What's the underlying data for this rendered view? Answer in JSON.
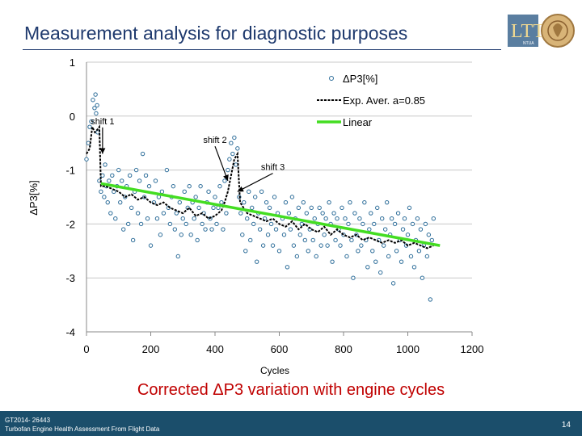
{
  "slide": {
    "title": "Measurement analysis for diagnostic purposes",
    "caption": "Corrected ΔP3 variation with engine cycles",
    "footer_line1": "GT2014- 26443",
    "footer_line2": "Turbofan Engine Health Assessment From Flight Data",
    "page_number": "14",
    "logo_text": "NTUA"
  },
  "colors": {
    "title": "#1f3a6e",
    "marker": "#2e6e9a",
    "average": "#000000",
    "linear": "#44dd22",
    "caption": "#c00000",
    "footer_bg": "#1b4e6b"
  },
  "chart_data": {
    "type": "scatter",
    "xlabel": "Cycles",
    "ylabel": "ΔP3[%]",
    "xlim": [
      0,
      1200
    ],
    "ylim": [
      -4,
      1
    ],
    "xticks": [
      0,
      200,
      400,
      600,
      800,
      1000,
      1200
    ],
    "yticks": [
      1,
      0,
      -1,
      -2,
      -3,
      -4
    ],
    "grid": "horizontal",
    "legend": [
      "ΔP3[%]",
      "Exp. Aver. a=0.85",
      "Linear"
    ],
    "legend_position": "top-right",
    "annotations": [
      {
        "text": "shift 1",
        "x": 50,
        "y": -0.15,
        "points_to": [
          50,
          -0.7
        ]
      },
      {
        "text": "shift 2",
        "x": 400,
        "y": -0.5,
        "points_to": [
          440,
          -1.2
        ]
      },
      {
        "text": "shift 3",
        "x": 580,
        "y": -1.0,
        "points_to": [
          470,
          -1.4
        ]
      }
    ],
    "series": [
      {
        "name": "ΔP3[%]",
        "kind": "markers",
        "points": [
          [
            0,
            -0.8
          ],
          [
            6,
            -0.5
          ],
          [
            10,
            -0.2
          ],
          [
            15,
            -0.1
          ],
          [
            20,
            0.3
          ],
          [
            25,
            0.15
          ],
          [
            28,
            0.4
          ],
          [
            30,
            0.05
          ],
          [
            33,
            0.2
          ],
          [
            35,
            -0.3
          ],
          [
            40,
            -1.2
          ],
          [
            45,
            -1.4
          ],
          [
            50,
            -1.1
          ],
          [
            55,
            -1.5
          ],
          [
            58,
            -0.9
          ],
          [
            62,
            -1.3
          ],
          [
            66,
            -1.6
          ],
          [
            70,
            -1.2
          ],
          [
            75,
            -1.8
          ],
          [
            80,
            -1.1
          ],
          [
            85,
            -1.4
          ],
          [
            90,
            -1.9
          ],
          [
            95,
            -1.3
          ],
          [
            100,
            -1.0
          ],
          [
            105,
            -1.6
          ],
          [
            110,
            -1.2
          ],
          [
            115,
            -2.1
          ],
          [
            120,
            -1.5
          ],
          [
            125,
            -1.3
          ],
          [
            130,
            -2.0
          ],
          [
            135,
            -1.1
          ],
          [
            140,
            -1.7
          ],
          [
            145,
            -2.3
          ],
          [
            150,
            -1.4
          ],
          [
            155,
            -1.0
          ],
          [
            160,
            -1.8
          ],
          [
            165,
            -1.2
          ],
          [
            170,
            -2.0
          ],
          [
            175,
            -0.7
          ],
          [
            180,
            -1.5
          ],
          [
            185,
            -1.1
          ],
          [
            190,
            -1.9
          ],
          [
            195,
            -1.3
          ],
          [
            200,
            -2.4
          ],
          [
            210,
            -1.6
          ],
          [
            215,
            -1.2
          ],
          [
            220,
            -1.9
          ],
          [
            225,
            -1.5
          ],
          [
            230,
            -2.2
          ],
          [
            235,
            -1.4
          ],
          [
            240,
            -1.8
          ],
          [
            250,
            -1.0
          ],
          [
            255,
            -1.7
          ],
          [
            260,
            -2.0
          ],
          [
            265,
            -1.5
          ],
          [
            270,
            -1.3
          ],
          [
            275,
            -2.1
          ],
          [
            280,
            -1.8
          ],
          [
            285,
            -2.6
          ],
          [
            290,
            -1.6
          ],
          [
            295,
            -2.2
          ],
          [
            300,
            -1.9
          ],
          [
            305,
            -1.4
          ],
          [
            310,
            -2.0
          ],
          [
            315,
            -1.7
          ],
          [
            320,
            -1.3
          ],
          [
            325,
            -2.2
          ],
          [
            330,
            -1.6
          ],
          [
            335,
            -1.9
          ],
          [
            340,
            -1.5
          ],
          [
            345,
            -2.3
          ],
          [
            350,
            -1.7
          ],
          [
            355,
            -1.3
          ],
          [
            360,
            -2.0
          ],
          [
            365,
            -1.8
          ],
          [
            370,
            -2.1
          ],
          [
            375,
            -1.6
          ],
          [
            380,
            -1.4
          ],
          [
            385,
            -1.9
          ],
          [
            390,
            -2.1
          ],
          [
            395,
            -1.7
          ],
          [
            400,
            -1.5
          ],
          [
            405,
            -2.0
          ],
          [
            410,
            -1.7
          ],
          [
            415,
            -1.3
          ],
          [
            420,
            -1.6
          ],
          [
            425,
            -2.1
          ],
          [
            430,
            -1.2
          ],
          [
            435,
            -1.8
          ],
          [
            440,
            -1.0
          ],
          [
            445,
            -0.8
          ],
          [
            450,
            -0.5
          ],
          [
            455,
            -0.7
          ],
          [
            460,
            -0.4
          ],
          [
            465,
            -0.9
          ],
          [
            470,
            -0.6
          ],
          [
            475,
            -1.5
          ],
          [
            480,
            -1.8
          ],
          [
            485,
            -2.2
          ],
          [
            490,
            -1.6
          ],
          [
            495,
            -2.5
          ],
          [
            500,
            -1.9
          ],
          [
            505,
            -1.4
          ],
          [
            510,
            -2.3
          ],
          [
            515,
            -1.7
          ],
          [
            520,
            -2.0
          ],
          [
            525,
            -1.5
          ],
          [
            530,
            -2.7
          ],
          [
            535,
            -1.8
          ],
          [
            540,
            -2.1
          ],
          [
            545,
            -1.4
          ],
          [
            550,
            -2.4
          ],
          [
            555,
            -1.9
          ],
          [
            560,
            -1.6
          ],
          [
            565,
            -2.2
          ],
          [
            570,
            -1.7
          ],
          [
            575,
            -2.0
          ],
          [
            580,
            -2.4
          ],
          [
            585,
            -1.5
          ],
          [
            590,
            -2.1
          ],
          [
            595,
            -1.8
          ],
          [
            600,
            -2.5
          ],
          [
            610,
            -1.9
          ],
          [
            615,
            -2.2
          ],
          [
            620,
            -1.6
          ],
          [
            625,
            -2.8
          ],
          [
            630,
            -1.8
          ],
          [
            635,
            -2.1
          ],
          [
            640,
            -1.5
          ],
          [
            645,
            -2.4
          ],
          [
            650,
            -1.9
          ],
          [
            655,
            -2.6
          ],
          [
            660,
            -1.7
          ],
          [
            665,
            -2.2
          ],
          [
            670,
            -2.0
          ],
          [
            675,
            -1.6
          ],
          [
            680,
            -2.3
          ],
          [
            685,
            -1.8
          ],
          [
            690,
            -2.5
          ],
          [
            695,
            -2.1
          ],
          [
            700,
            -1.7
          ],
          [
            705,
            -2.3
          ],
          [
            710,
            -1.9
          ],
          [
            715,
            -2.6
          ],
          [
            720,
            -2.0
          ],
          [
            725,
            -1.7
          ],
          [
            730,
            -2.4
          ],
          [
            735,
            -1.8
          ],
          [
            740,
            -2.2
          ],
          [
            745,
            -1.9
          ],
          [
            750,
            -2.4
          ],
          [
            755,
            -1.6
          ],
          [
            760,
            -2.0
          ],
          [
            765,
            -2.7
          ],
          [
            770,
            -1.8
          ],
          [
            775,
            -2.3
          ],
          [
            780,
            -1.9
          ],
          [
            785,
            -2.1
          ],
          [
            790,
            -2.4
          ],
          [
            795,
            -1.7
          ],
          [
            800,
            -2.2
          ],
          [
            805,
            -1.9
          ],
          [
            810,
            -2.6
          ],
          [
            815,
            -2.0
          ],
          [
            820,
            -1.6
          ],
          [
            825,
            -2.3
          ],
          [
            830,
            -3.0
          ],
          [
            835,
            -1.8
          ],
          [
            840,
            -2.2
          ],
          [
            845,
            -2.5
          ],
          [
            850,
            -1.9
          ],
          [
            855,
            -2.4
          ],
          [
            860,
            -2.0
          ],
          [
            865,
            -1.6
          ],
          [
            870,
            -2.3
          ],
          [
            875,
            -2.8
          ],
          [
            880,
            -2.1
          ],
          [
            885,
            -1.8
          ],
          [
            890,
            -2.5
          ],
          [
            895,
            -2.0
          ],
          [
            900,
            -2.7
          ],
          [
            905,
            -1.7
          ],
          [
            910,
            -2.3
          ],
          [
            915,
            -2.9
          ],
          [
            920,
            -1.9
          ],
          [
            925,
            -2.4
          ],
          [
            930,
            -2.1
          ],
          [
            935,
            -1.6
          ],
          [
            940,
            -2.6
          ],
          [
            945,
            -2.2
          ],
          [
            950,
            -1.9
          ],
          [
            955,
            -3.1
          ],
          [
            960,
            -2.0
          ],
          [
            965,
            -2.5
          ],
          [
            970,
            -1.8
          ],
          [
            975,
            -2.3
          ],
          [
            980,
            -2.7
          ],
          [
            985,
            -2.1
          ],
          [
            990,
            -1.9
          ],
          [
            995,
            -2.4
          ],
          [
            1000,
            -2.2
          ],
          [
            1005,
            -1.7
          ],
          [
            1010,
            -2.6
          ],
          [
            1015,
            -2.0
          ],
          [
            1020,
            -2.8
          ],
          [
            1025,
            -2.3
          ],
          [
            1030,
            -1.9
          ],
          [
            1035,
            -2.5
          ],
          [
            1040,
            -2.1
          ],
          [
            1045,
            -3.0
          ],
          [
            1050,
            -2.4
          ],
          [
            1055,
            -2.0
          ],
          [
            1060,
            -2.6
          ],
          [
            1065,
            -2.2
          ],
          [
            1070,
            -3.4
          ],
          [
            1075,
            -2.3
          ],
          [
            1080,
            -1.9
          ]
        ]
      },
      {
        "name": "Exp. Aver. a=0.85",
        "kind": "line",
        "points": [
          [
            0,
            -0.7
          ],
          [
            10,
            -0.6
          ],
          [
            18,
            -0.2
          ],
          [
            26,
            -0.3
          ],
          [
            34,
            -0.25
          ],
          [
            40,
            -0.2
          ],
          [
            45,
            -1.3
          ],
          [
            60,
            -1.3
          ],
          [
            80,
            -1.35
          ],
          [
            100,
            -1.4
          ],
          [
            120,
            -1.5
          ],
          [
            140,
            -1.45
          ],
          [
            160,
            -1.55
          ],
          [
            180,
            -1.5
          ],
          [
            200,
            -1.6
          ],
          [
            220,
            -1.65
          ],
          [
            240,
            -1.6
          ],
          [
            260,
            -1.7
          ],
          [
            280,
            -1.75
          ],
          [
            300,
            -1.8
          ],
          [
            320,
            -1.7
          ],
          [
            340,
            -1.85
          ],
          [
            360,
            -1.8
          ],
          [
            380,
            -1.9
          ],
          [
            400,
            -1.85
          ],
          [
            420,
            -1.75
          ],
          [
            430,
            -1.6
          ],
          [
            440,
            -1.4
          ],
          [
            450,
            -1.1
          ],
          [
            460,
            -0.8
          ],
          [
            470,
            -0.7
          ],
          [
            478,
            -1.6
          ],
          [
            500,
            -1.8
          ],
          [
            520,
            -1.85
          ],
          [
            540,
            -1.9
          ],
          [
            560,
            -1.95
          ],
          [
            580,
            -1.9
          ],
          [
            600,
            -2.0
          ],
          [
            620,
            -2.05
          ],
          [
            640,
            -1.95
          ],
          [
            660,
            -2.1
          ],
          [
            680,
            -2.0
          ],
          [
            700,
            -2.1
          ],
          [
            720,
            -2.15
          ],
          [
            740,
            -2.05
          ],
          [
            760,
            -2.2
          ],
          [
            780,
            -2.1
          ],
          [
            800,
            -2.2
          ],
          [
            820,
            -2.25
          ],
          [
            840,
            -2.2
          ],
          [
            860,
            -2.3
          ],
          [
            880,
            -2.25
          ],
          [
            900,
            -2.3
          ],
          [
            920,
            -2.35
          ],
          [
            940,
            -2.3
          ],
          [
            960,
            -2.35
          ],
          [
            980,
            -2.3
          ],
          [
            1000,
            -2.4
          ],
          [
            1020,
            -2.35
          ],
          [
            1040,
            -2.4
          ],
          [
            1060,
            -2.45
          ],
          [
            1080,
            -2.4
          ]
        ]
      },
      {
        "name": "Linear",
        "kind": "line",
        "points": [
          [
            45,
            -1.25
          ],
          [
            1100,
            -2.4
          ]
        ]
      }
    ]
  }
}
